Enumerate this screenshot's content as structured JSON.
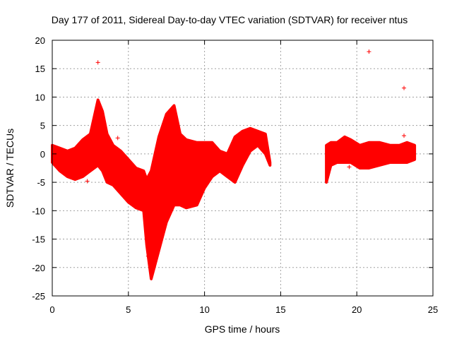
{
  "chart_data": {
    "type": "scatter",
    "title": "Day 177 of 2011, Sidereal Day-to-day VTEC variation (SDTVAR) for receiver ntus",
    "xlabel": "GPS time / hours",
    "ylabel": "SDTVAR / TECUs",
    "xlim": [
      0,
      25
    ],
    "ylim": [
      -25,
      20
    ],
    "x_ticks": [
      "0",
      "5",
      "10",
      "15",
      "20",
      "25"
    ],
    "y_ticks": [
      "20",
      "15",
      "10",
      "5",
      "0",
      "-5",
      "-10",
      "-15",
      "-20",
      "-25"
    ],
    "grid": true,
    "marker": "+",
    "color": "#ff0000",
    "bands": [
      {
        "x": [
          0.0,
          0.5,
          1.0,
          1.5,
          2.0,
          2.5,
          3.0,
          3.3,
          3.6,
          4.0,
          4.5,
          5.0,
          5.5,
          6.0,
          6.2,
          6.5,
          7.0,
          7.5,
          8.0,
          8.4,
          8.8,
          9.5,
          10.0,
          10.5,
          11.0,
          11.5,
          12.0,
          12.5,
          13.0,
          13.5,
          14.0,
          14.3
        ],
        "low": [
          -1.5,
          -3.0,
          -4.0,
          -4.5,
          -4.0,
          -3.0,
          -2.0,
          -3.0,
          -5.0,
          -5.5,
          -7.0,
          -8.5,
          -9.5,
          -10.0,
          -16.0,
          -22.0,
          -17.0,
          -12.0,
          -9.0,
          -9.0,
          -9.5,
          -9.0,
          -6.0,
          -4.0,
          -3.0,
          -4.0,
          -5.0,
          -2.0,
          0.5,
          1.5,
          0.0,
          -2.0
        ],
        "high": [
          1.5,
          1.0,
          0.5,
          1.0,
          2.5,
          3.5,
          9.5,
          7.5,
          3.5,
          1.5,
          0.5,
          -1.0,
          -2.5,
          -3.0,
          -4.5,
          -3.0,
          3.0,
          7.0,
          8.5,
          3.5,
          2.5,
          2.0,
          2.0,
          2.0,
          0.5,
          0.0,
          3.0,
          4.0,
          4.5,
          4.0,
          3.5,
          -1.5
        ]
      },
      {
        "x": [
          18.0,
          18.3,
          18.7,
          19.2,
          19.6,
          20.2,
          20.8,
          21.5,
          22.2,
          22.8,
          23.3,
          23.8
        ],
        "low": [
          -5.0,
          -2.0,
          -1.5,
          -1.5,
          -1.5,
          -2.5,
          -2.5,
          -2.0,
          -1.5,
          -1.5,
          -1.5,
          -1.0
        ],
        "high": [
          1.5,
          2.0,
          2.0,
          3.0,
          2.5,
          1.5,
          2.0,
          2.0,
          1.5,
          1.5,
          2.0,
          1.5
        ]
      }
    ],
    "outliers": [
      {
        "x": 3.0,
        "y": 16.1
      },
      {
        "x": 20.8,
        "y": 18.0
      },
      {
        "x": 23.1,
        "y": 11.6
      },
      {
        "x": 4.3,
        "y": 2.8
      },
      {
        "x": 2.3,
        "y": -4.8
      },
      {
        "x": 6.3,
        "y": -18.0
      },
      {
        "x": 19.5,
        "y": -2.3
      },
      {
        "x": 23.1,
        "y": 3.2
      }
    ]
  }
}
